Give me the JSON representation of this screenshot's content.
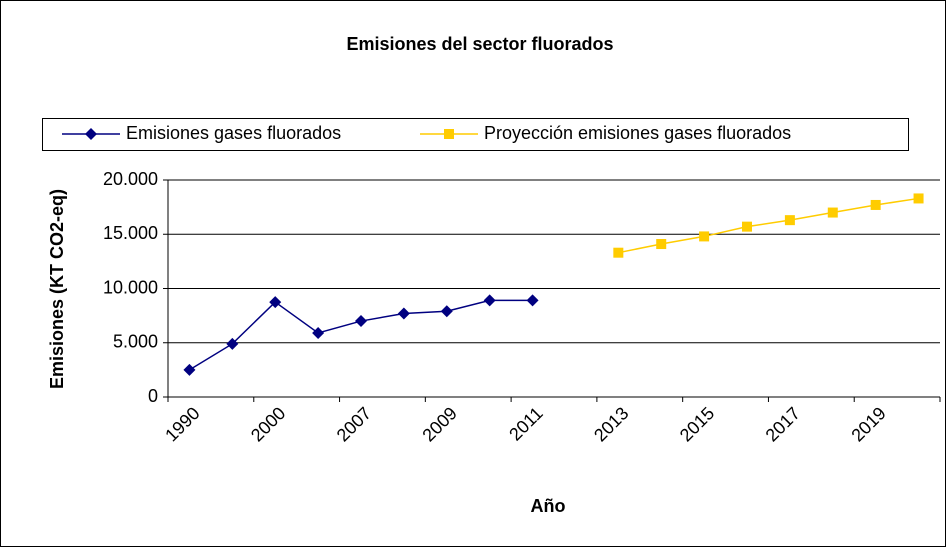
{
  "chart_data": {
    "type": "line",
    "title": "Emisiones del sector fluorados",
    "x_label": "Año",
    "y_label": "Emisiones (KT CO2-eq)",
    "categories": [
      "1990",
      null,
      "2000",
      null,
      "2007",
      null,
      "2009",
      null,
      "2011",
      null,
      "2013",
      null,
      "2015",
      null,
      "2017",
      null,
      "2019",
      null
    ],
    "series": [
      {
        "name": "Emisiones gases fluorados",
        "color": "#000080",
        "marker": "diamond",
        "values": [
          2500,
          4900,
          8750,
          5900,
          7000,
          7700,
          7900,
          8900,
          8900,
          null,
          null,
          null,
          null,
          null,
          null,
          null,
          null,
          null
        ]
      },
      {
        "name": "Proyección emisiones gases fluorados",
        "color": "#FFCC00",
        "marker": "square",
        "values": [
          null,
          null,
          null,
          null,
          null,
          null,
          null,
          null,
          null,
          null,
          13300,
          14100,
          14800,
          15700,
          16300,
          17000,
          17700,
          18300
        ]
      }
    ],
    "ylim": [
      0,
      20000
    ],
    "yticks": [
      0,
      {
        "value": 5000,
        "label": "5.000"
      },
      {
        "value": 10000,
        "label": "10.000"
      },
      {
        "value": 15000,
        "label": "15.000"
      },
      {
        "value": 20000,
        "label": "20.000"
      }
    ],
    "grid": true,
    "legend": "top"
  }
}
